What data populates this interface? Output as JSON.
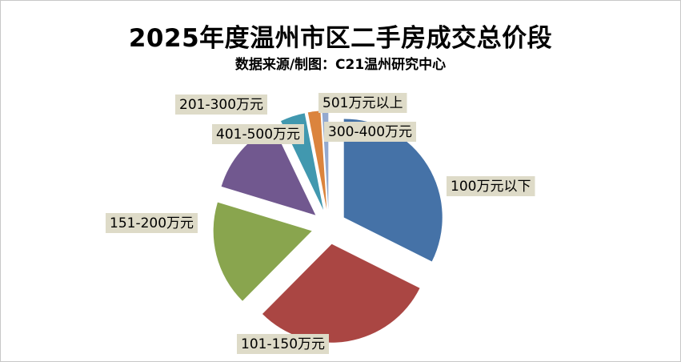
{
  "chart": {
    "title": "2025年度温州市区二手房成交总价段",
    "subtitle": "数据来源/制图：C21温州研究中心"
  },
  "chart_data": {
    "type": "pie",
    "title": "2025年度温州市区二手房成交总价段",
    "subtitle": "数据来源/制图：C21温州研究中心",
    "categories": [
      "100万元以下",
      "101-150万元",
      "151-200万元",
      "201-300万元",
      "401-500万元",
      "501万元以上",
      "300-400万元"
    ],
    "values": [
      31.9,
      29.6,
      17.0,
      13.0,
      4.0,
      2.0,
      1.0
    ],
    "exploded": true,
    "legend": "none"
  },
  "colors": [
    "#4572a7",
    "#aa4643",
    "#89a54e",
    "#71588f",
    "#4198af",
    "#db843d",
    "#93a9cf"
  ]
}
